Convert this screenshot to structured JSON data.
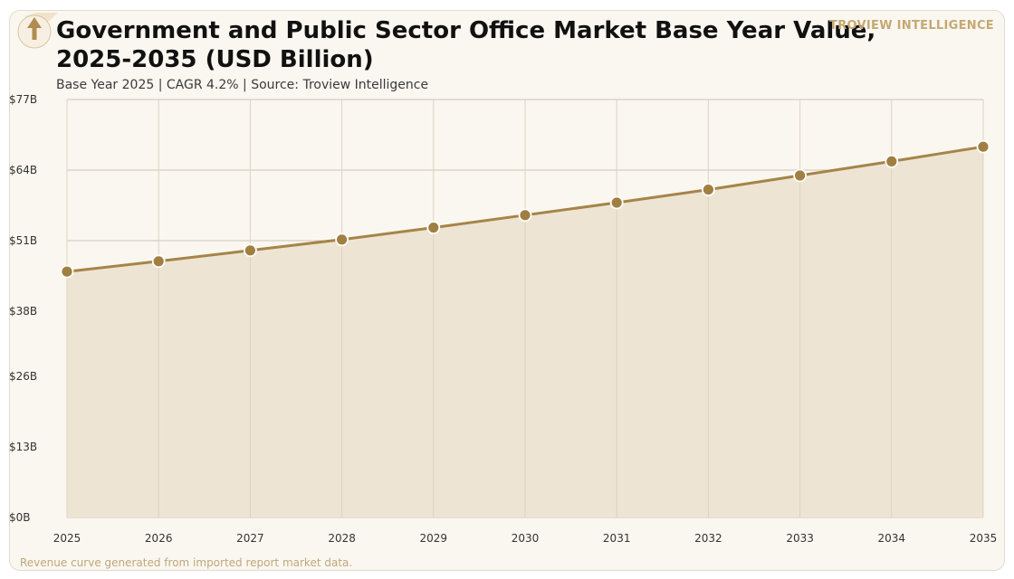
{
  "brand": "TROVIEW INTELLIGENCE",
  "footnote": "Revenue curve generated from imported report market data.",
  "colors": {
    "line": "#a68448",
    "marker": "#a07f40",
    "area": "#ede4d3",
    "card_bg": "#faf7f0",
    "grid": "#cfc6b4"
  },
  "logo_icon": "upward-arrow-icon",
  "chart_data": {
    "type": "area",
    "title": "Government and Public Sector Office Market Base Year Value, 2025-2035 (USD Billion)",
    "subtitle": "Base Year 2025 | CAGR 4.2% | Source: Troview Intelligence",
    "x": [
      "2025",
      "2026",
      "2027",
      "2028",
      "2029",
      "2030",
      "2031",
      "2032",
      "2033",
      "2034",
      "2035"
    ],
    "series": [
      {
        "values": [
          45.3,
          47.2,
          49.2,
          51.2,
          53.4,
          55.7,
          58.0,
          60.4,
          63.0,
          65.6,
          68.3
        ]
      }
    ],
    "y_ticks": [
      "$0B",
      "$13B",
      "$26B",
      "$38B",
      "$51B",
      "$64B",
      "$77B"
    ],
    "y_tick_values": [
      0,
      13,
      26,
      38,
      51,
      64,
      77
    ],
    "ylim": [
      0,
      77
    ],
    "grid": true,
    "markers": true
  }
}
